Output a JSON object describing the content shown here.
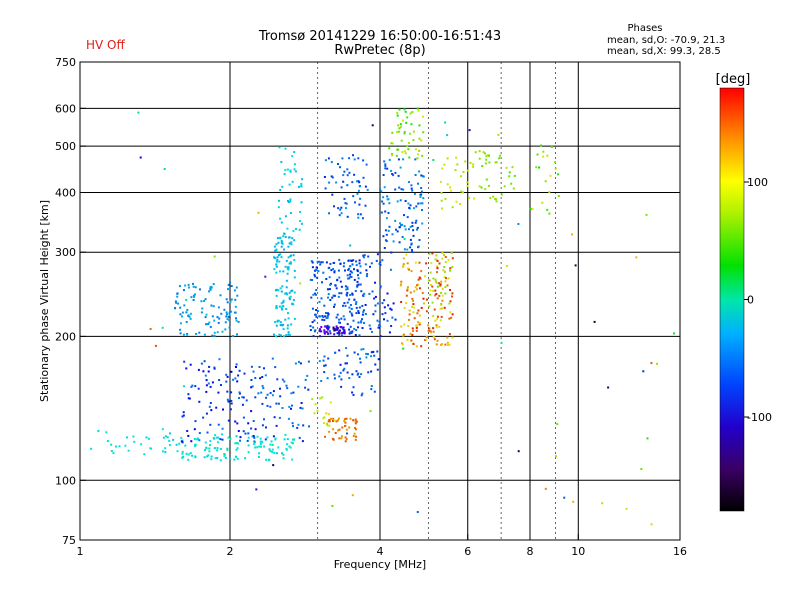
{
  "header": {
    "title_line1": "Tromsø 20141229 16:50:00-16:51:43",
    "title_line2": "RwPretec (8p)",
    "hv_status": "HV Off",
    "hv_color": "#e0201a",
    "phase_title": "Phases",
    "phase_o": "mean, sd,O: -70.9, 21.3",
    "phase_x": "mean, sd,X:  99.3, 28.5"
  },
  "chart_data": {
    "type": "scatter",
    "xlabel": "Frequency [MHz]",
    "ylabel": "Stationary phase Virtual Height [km]",
    "x_scale": "log",
    "y_scale": "log",
    "xlim": [
      1,
      16
    ],
    "ylim": [
      75,
      750
    ],
    "grid": true,
    "x_ticks": [
      {
        "v": 1,
        "t": "1",
        "grid": false
      },
      {
        "v": 2,
        "t": "2",
        "grid": true
      },
      {
        "v": 4,
        "t": "4",
        "grid": true
      },
      {
        "v": 6,
        "t": "6",
        "grid": true
      },
      {
        "v": 8,
        "t": "8",
        "grid": true
      },
      {
        "v": 10,
        "t": "10",
        "grid": true
      },
      {
        "v": 16,
        "t": "16",
        "grid": false
      }
    ],
    "x_minor_grid": [
      3,
      5,
      7,
      9
    ],
    "y_ticks": [
      {
        "v": 75,
        "t": "75",
        "grid": false
      },
      {
        "v": 100,
        "t": "100",
        "grid": true
      },
      {
        "v": 200,
        "t": "200",
        "grid": true
      },
      {
        "v": 300,
        "t": "300",
        "grid": true
      },
      {
        "v": 400,
        "t": "400",
        "grid": true
      },
      {
        "v": 500,
        "t": "500",
        "grid": true
      },
      {
        "v": 600,
        "t": "600",
        "grid": true
      },
      {
        "v": 750,
        "t": "750",
        "grid": false
      }
    ],
    "colorbar": {
      "label": "[deg]",
      "min": -180,
      "max": 180,
      "ticks": [
        {
          "v": 100,
          "t": "100"
        },
        {
          "v": 0,
          "t": "0"
        },
        {
          "v": -100,
          "t": "-100"
        }
      ]
    },
    "clusters": [
      {
        "f": [
          1.05,
          1.6
        ],
        "h": [
          112,
          128
        ],
        "phase": [
          -40,
          -20
        ],
        "n": 35
      },
      {
        "f": [
          1.6,
          2.7
        ],
        "h": [
          110,
          125
        ],
        "phase": [
          -40,
          -15
        ],
        "n": 120
      },
      {
        "f": [
          1.6,
          2.3
        ],
        "h": [
          120,
          180
        ],
        "phase": [
          -110,
          -60
        ],
        "n": 110
      },
      {
        "f": [
          2.3,
          2.9
        ],
        "h": [
          120,
          180
        ],
        "phase": [
          -95,
          -55
        ],
        "n": 60
      },
      {
        "f": [
          1.55,
          2.1
        ],
        "h": [
          200,
          260
        ],
        "phase": [
          -65,
          -45
        ],
        "n": 110
      },
      {
        "f": [
          2.45,
          2.7
        ],
        "h": [
          200,
          330
        ],
        "phase": [
          -50,
          -35
        ],
        "n": 120
      },
      {
        "f": [
          2.5,
          2.8
        ],
        "h": [
          330,
          500
        ],
        "phase": [
          -45,
          -30
        ],
        "n": 40
      },
      {
        "f": [
          2.9,
          3.7
        ],
        "h": [
          200,
          290
        ],
        "phase": [
          -95,
          -60
        ],
        "n": 200
      },
      {
        "f": [
          3.0,
          3.4
        ],
        "h": [
          202,
          210
        ],
        "phase": [
          -140,
          -115
        ],
        "n": 40
      },
      {
        "f": [
          3.0,
          4.0
        ],
        "h": [
          150,
          190
        ],
        "phase": [
          -95,
          -55
        ],
        "n": 60
      },
      {
        "f": [
          3.1,
          3.6
        ],
        "h": [
          120,
          135
        ],
        "phase": [
          130,
          160
        ],
        "n": 45
      },
      {
        "f": [
          2.95,
          3.25
        ],
        "h": [
          130,
          150
        ],
        "phase": [
          90,
          120
        ],
        "n": 15
      },
      {
        "f": [
          3.1,
          3.8
        ],
        "h": [
          350,
          480
        ],
        "phase": [
          -90,
          -55
        ],
        "n": 60
      },
      {
        "f": [
          3.6,
          4.3
        ],
        "h": [
          200,
          300
        ],
        "phase": [
          -100,
          -60
        ],
        "n": 70
      },
      {
        "f": [
          4.0,
          4.9
        ],
        "h": [
          300,
          470
        ],
        "phase": [
          -90,
          -50
        ],
        "n": 110
      },
      {
        "f": [
          4.2,
          4.9
        ],
        "h": [
          470,
          600
        ],
        "phase": [
          30,
          110
        ],
        "n": 50
      },
      {
        "f": [
          4.4,
          5.6
        ],
        "h": [
          190,
          300
        ],
        "phase": [
          100,
          175
        ],
        "n": 160
      },
      {
        "f": [
          5.0,
          5.6
        ],
        "h": [
          230,
          300
        ],
        "phase": [
          75,
          95
        ],
        "n": 25
      },
      {
        "f": [
          5.3,
          6.3
        ],
        "h": [
          370,
          480
        ],
        "phase": [
          85,
          110
        ],
        "n": 30
      },
      {
        "f": [
          6.3,
          7.5
        ],
        "h": [
          380,
          480
        ],
        "phase": [
          60,
          100
        ],
        "n": 25
      },
      {
        "f": [
          6.2,
          7.0
        ],
        "h": [
          460,
          490
        ],
        "phase": [
          70,
          90
        ],
        "n": 12
      },
      {
        "f": [
          8.0,
          9.2
        ],
        "h": [
          360,
          520
        ],
        "phase": [
          30,
          110
        ],
        "n": 20
      },
      {
        "f": [
          1.3,
          16.0
        ],
        "h": [
          80,
          650
        ],
        "phase": [
          -170,
          170
        ],
        "n": 55
      }
    ]
  }
}
